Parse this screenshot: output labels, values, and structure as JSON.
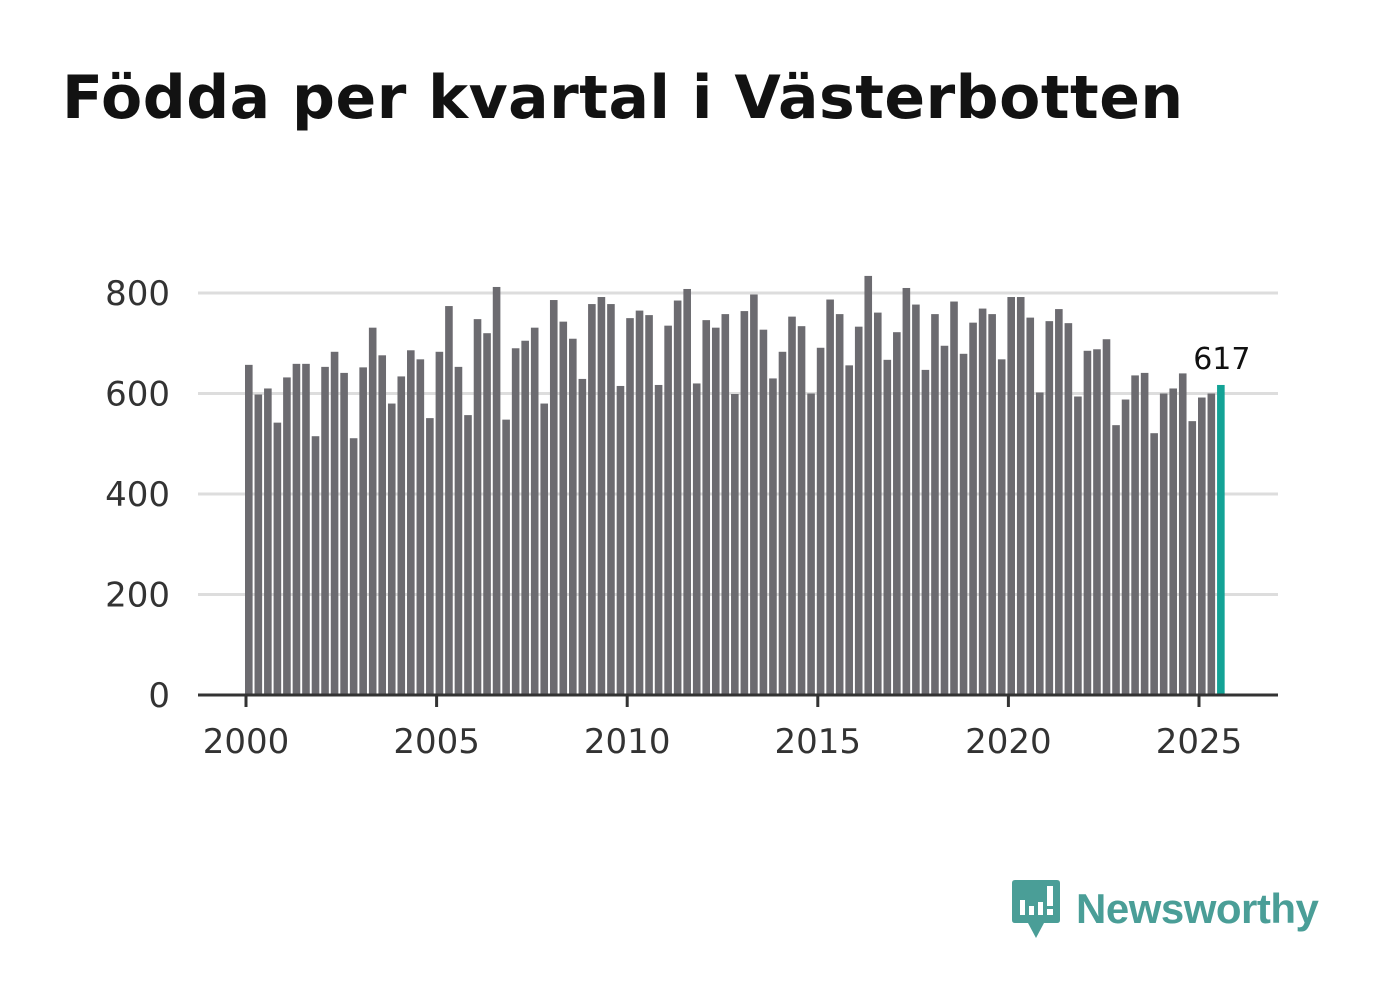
{
  "title": "Födda per kvartal i Västerbotten",
  "brand": {
    "name": "Newsworthy",
    "color": "#4a9e97",
    "icon": "newsworthy-logo-icon"
  },
  "colors": {
    "bar": "#6c6b70",
    "highlight": "#13a396",
    "grid": "#dddddd",
    "axis": "#333333"
  },
  "chart_data": {
    "type": "bar",
    "title": "Födda per kvartal i Västerbotten",
    "xlabel": "",
    "ylabel": "",
    "ylim": [
      0,
      800
    ],
    "xlim": [
      2000,
      2027
    ],
    "yticks": [
      0,
      200,
      400,
      600,
      800
    ],
    "xticks": [
      2000,
      2005,
      2010,
      2015,
      2020,
      2025
    ],
    "grid": true,
    "start": "2000 Q1",
    "end": "2025 Q3",
    "values": [
      657,
      598,
      610,
      542,
      632,
      659,
      659,
      515,
      653,
      683,
      641,
      511,
      652,
      731,
      676,
      580,
      634,
      686,
      668,
      551,
      683,
      774,
      653,
      557,
      748,
      720,
      812,
      548,
      690,
      705,
      731,
      580,
      786,
      743,
      709,
      629,
      778,
      792,
      778,
      615,
      750,
      765,
      756,
      617,
      735,
      785,
      808,
      620,
      746,
      731,
      758,
      599,
      764,
      797,
      727,
      630,
      683,
      753,
      734,
      600,
      691,
      787,
      758,
      656,
      733,
      834,
      761,
      667,
      722,
      810,
      777,
      647,
      758,
      695,
      783,
      679,
      741,
      769,
      758,
      668,
      792,
      792,
      751,
      602,
      744,
      768,
      740,
      594,
      685,
      688,
      708,
      537,
      588,
      636,
      641,
      521,
      600,
      610,
      640,
      545,
      592,
      600,
      617
    ],
    "highlight_last": true,
    "annotation": {
      "label": "617",
      "target": "last"
    }
  }
}
